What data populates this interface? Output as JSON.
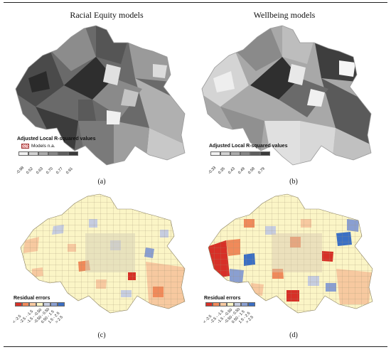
{
  "headers": {
    "left": "Racial Equity models",
    "right": "Wellbeing models"
  },
  "panels": {
    "a": {
      "label": "(a)"
    },
    "b": {
      "label": "(b)"
    },
    "c": {
      "label": "(c)"
    },
    "d": {
      "label": "(d)"
    }
  },
  "legend_a": {
    "title": "Adjusted Local R-squared values",
    "na_label": "Models n.a.",
    "ticks": [
      "-0.99",
      "0.52",
      "0.63",
      "0.70",
      "0.77",
      "0.91"
    ],
    "colors": [
      "#f2f2f2",
      "#d2d2d2",
      "#aaaaaa",
      "#858585",
      "#5e5e5e",
      "#3a3a3a"
    ]
  },
  "legend_b": {
    "title": "Adjusted Local R-squared values",
    "ticks": [
      "-0.33",
      "0.35",
      "0.43",
      "0.49",
      "0.58",
      "0.79"
    ],
    "colors": [
      "#f2f2f2",
      "#d2d2d2",
      "#aaaaaa",
      "#858585",
      "#5e5e5e",
      "#3a3a3a"
    ]
  },
  "legend_residuals": {
    "title": "Residual errors",
    "ticks": [
      "< -2.5",
      "-2.5 - -1.5",
      "-1.5 - -0.50",
      "-0.50 - 0.50",
      "0.50 - 1.5",
      "1.5 - 2.5",
      "> 2.5"
    ],
    "colors": [
      "#d73027",
      "#f08a5a",
      "#f7c9a0",
      "#fbf5c6",
      "#c6cde0",
      "#8a9fd1",
      "#3b6fc4"
    ]
  }
}
